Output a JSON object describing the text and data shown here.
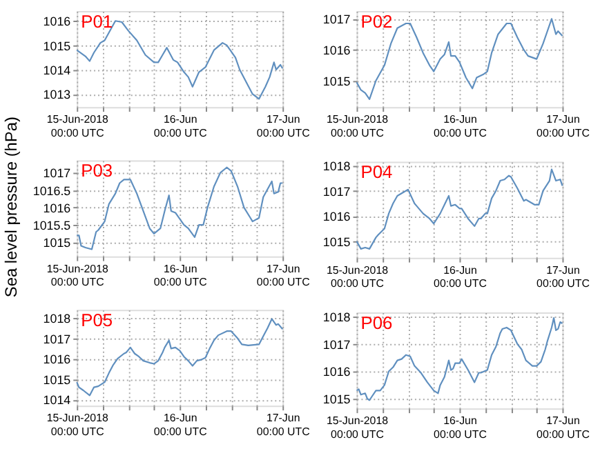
{
  "chart_data": [
    {
      "type": "line",
      "title": "P01",
      "grid": true,
      "xlim": [
        "2018-06-15T00:00",
        "2018-06-17T00:00"
      ],
      "ylim": [
        1012.47,
        1016.4
      ],
      "yticks": [
        1013,
        1014,
        1015,
        1016
      ],
      "xticks": [
        {
          "value": "2018-06-15T00:00",
          "label": "15-Jun-2018\n00:00 UTC"
        },
        {
          "value": "2018-06-15T06:00",
          "label": null
        },
        {
          "value": "2018-06-15T12:00",
          "label": null
        },
        {
          "value": "2018-06-15T18:00",
          "label": null
        },
        {
          "value": "2018-06-16T00:00",
          "label": "16-Jun\n00:00 UTC"
        },
        {
          "value": "2018-06-16T06:00",
          "label": null
        },
        {
          "value": "2018-06-16T12:00",
          "label": null
        },
        {
          "value": "2018-06-16T18:00",
          "label": null
        },
        {
          "value": "2018-06-17T00:00",
          "label": "17-Jun\n00:00 UTC"
        }
      ],
      "x": [
        "2018-06-15T00:00",
        "2018-06-15T02:00",
        "2018-06-15T03:00",
        "2018-06-15T04:00",
        "2018-06-15T05:30",
        "2018-06-15T06:30",
        "2018-06-15T09:00",
        "2018-06-15T10:30",
        "2018-06-15T12:00",
        "2018-06-15T14:00",
        "2018-06-15T16:00",
        "2018-06-15T18:00",
        "2018-06-15T19:00",
        "2018-06-15T20:00",
        "2018-06-15T21:00",
        "2018-06-15T22:30",
        "2018-06-15T23:30",
        "2018-06-16T01:00",
        "2018-06-16T02:00",
        "2018-06-16T03:00",
        "2018-06-16T04:30",
        "2018-06-16T06:00",
        "2018-06-16T08:00",
        "2018-06-16T10:00",
        "2018-06-16T11:00",
        "2018-06-16T13:00",
        "2018-06-16T14:00",
        "2018-06-16T15:30",
        "2018-06-16T17:00",
        "2018-06-16T18:30",
        "2018-06-16T20:00",
        "2018-06-16T21:00",
        "2018-06-16T22:00",
        "2018-06-16T22:30",
        "2018-06-16T23:30",
        "2018-06-17T00:00"
      ],
      "series": [
        {
          "color": "#5f8fbf",
          "values": [
            1014.8,
            1014.55,
            1014.35,
            1014.7,
            1015.1,
            1015.2,
            1016.0,
            1015.95,
            1015.6,
            1015.2,
            1014.6,
            1014.3,
            1014.3,
            1014.6,
            1014.9,
            1014.4,
            1014.3,
            1013.9,
            1013.7,
            1013.3,
            1013.9,
            1014.1,
            1014.8,
            1015.1,
            1015.0,
            1014.5,
            1014.0,
            1013.5,
            1013.0,
            1012.8,
            1013.3,
            1013.7,
            1014.3,
            1014.0,
            1014.2,
            1014.05
          ]
        }
      ]
    },
    {
      "type": "line",
      "title": "P02",
      "grid": true,
      "xlim": [
        "2018-06-15T00:00",
        "2018-06-17T00:00"
      ],
      "ylim": [
        1014.15,
        1017.25
      ],
      "yticks": [
        1015,
        1016,
        1017
      ],
      "xticks": [
        {
          "value": "2018-06-15T00:00",
          "label": "15-Jun-2018\n00:00 UTC"
        },
        {
          "value": "2018-06-15T06:00",
          "label": null
        },
        {
          "value": "2018-06-15T12:00",
          "label": null
        },
        {
          "value": "2018-06-15T18:00",
          "label": null
        },
        {
          "value": "2018-06-16T00:00",
          "label": "16-Jun\n00:00 UTC"
        },
        {
          "value": "2018-06-16T06:00",
          "label": null
        },
        {
          "value": "2018-06-16T12:00",
          "label": null
        },
        {
          "value": "2018-06-16T18:00",
          "label": null
        },
        {
          "value": "2018-06-17T00:00",
          "label": "17-Jun\n00:00 UTC"
        }
      ],
      "x": [
        "2018-06-15T00:00",
        "2018-06-15T01:00",
        "2018-06-15T02:00",
        "2018-06-15T03:00",
        "2018-06-15T04:30",
        "2018-06-15T06:30",
        "2018-06-15T08:00",
        "2018-06-15T09:30",
        "2018-06-15T11:30",
        "2018-06-15T12:30",
        "2018-06-15T14:00",
        "2018-06-15T15:30",
        "2018-06-15T17:00",
        "2018-06-15T18:00",
        "2018-06-15T19:30",
        "2018-06-15T20:30",
        "2018-06-15T21:30",
        "2018-06-15T22:00",
        "2018-06-15T23:00",
        "2018-06-16T00:00",
        "2018-06-16T01:30",
        "2018-06-16T03:00",
        "2018-06-16T04:00",
        "2018-06-16T05:30",
        "2018-06-16T06:30",
        "2018-06-16T07:30",
        "2018-06-16T09:00",
        "2018-06-16T11:00",
        "2018-06-16T12:00",
        "2018-06-16T13:30",
        "2018-06-16T15:00",
        "2018-06-16T16:00",
        "2018-06-16T18:00",
        "2018-06-16T19:30",
        "2018-06-16T20:30",
        "2018-06-16T21:30",
        "2018-06-16T22:30",
        "2018-06-16T23:00",
        "2018-06-17T00:00"
      ],
      "series": [
        {
          "color": "#5f8fbf",
          "values": [
            1014.95,
            1014.7,
            1014.6,
            1014.4,
            1015.0,
            1015.5,
            1016.2,
            1016.7,
            1016.85,
            1016.85,
            1016.4,
            1015.9,
            1015.5,
            1015.3,
            1015.7,
            1015.85,
            1016.25,
            1015.8,
            1015.8,
            1015.6,
            1015.1,
            1014.75,
            1015.1,
            1015.2,
            1015.3,
            1015.9,
            1016.5,
            1016.85,
            1016.85,
            1016.4,
            1016.0,
            1015.8,
            1015.7,
            1016.2,
            1016.6,
            1017.0,
            1016.5,
            1016.6,
            1016.45
          ]
        }
      ]
    },
    {
      "type": "line",
      "title": "P03",
      "ylabel": "Sea level pressure (hPa)",
      "grid": true,
      "xlim": [
        "2018-06-15T00:00",
        "2018-06-17T00:00"
      ],
      "ylim": [
        1014.6,
        1017.35
      ],
      "yticks": [
        1015,
        1015.5,
        1016,
        1016.5,
        1017
      ],
      "xticks": [
        {
          "value": "2018-06-15T00:00",
          "label": "15-Jun-2018\n00:00 UTC"
        },
        {
          "value": "2018-06-15T06:00",
          "label": null
        },
        {
          "value": "2018-06-15T12:00",
          "label": null
        },
        {
          "value": "2018-06-15T18:00",
          "label": null
        },
        {
          "value": "2018-06-16T00:00",
          "label": "16-Jun\n00:00 UTC"
        },
        {
          "value": "2018-06-16T06:00",
          "label": null
        },
        {
          "value": "2018-06-16T12:00",
          "label": null
        },
        {
          "value": "2018-06-16T18:00",
          "label": null
        },
        {
          "value": "2018-06-17T00:00",
          "label": "17-Jun\n00:00 UTC"
        }
      ],
      "x": [
        "2018-06-15T00:00",
        "2018-06-15T00:30",
        "2018-06-15T01:00",
        "2018-06-15T02:00",
        "2018-06-15T03:30",
        "2018-06-15T04:30",
        "2018-06-15T05:00",
        "2018-06-15T06:30",
        "2018-06-15T07:30",
        "2018-06-15T09:00",
        "2018-06-15T10:00",
        "2018-06-15T11:00",
        "2018-06-15T12:30",
        "2018-06-15T14:00",
        "2018-06-15T15:30",
        "2018-06-15T17:00",
        "2018-06-15T18:00",
        "2018-06-15T19:30",
        "2018-06-15T20:30",
        "2018-06-15T21:30",
        "2018-06-15T22:00",
        "2018-06-15T23:00",
        "2018-06-16T01:00",
        "2018-06-16T02:00",
        "2018-06-16T03:30",
        "2018-06-16T04:30",
        "2018-06-16T05:30",
        "2018-06-16T06:30",
        "2018-06-16T08:00",
        "2018-06-16T09:30",
        "2018-06-16T11:00",
        "2018-06-16T12:00",
        "2018-06-16T13:30",
        "2018-06-16T15:00",
        "2018-06-16T16:30",
        "2018-06-16T17:00",
        "2018-06-16T18:30",
        "2018-06-16T19:30",
        "2018-06-16T21:30",
        "2018-06-16T22:00",
        "2018-06-16T23:00",
        "2018-06-16T23:30",
        "2018-06-17T00:00"
      ],
      "series": [
        {
          "color": "#5f8fbf",
          "values": [
            1015.2,
            1015.2,
            1014.9,
            1014.85,
            1014.8,
            1015.3,
            1015.35,
            1015.6,
            1016.1,
            1016.4,
            1016.7,
            1016.8,
            1016.8,
            1016.4,
            1015.9,
            1015.4,
            1015.25,
            1015.4,
            1015.9,
            1016.35,
            1015.9,
            1015.85,
            1015.5,
            1015.4,
            1015.15,
            1015.5,
            1015.5,
            1016.0,
            1016.6,
            1017.0,
            1017.15,
            1017.05,
            1016.6,
            1016.0,
            1015.7,
            1015.6,
            1015.7,
            1016.3,
            1016.75,
            1016.4,
            1016.45,
            1016.7,
            1016.7
          ]
        }
      ]
    },
    {
      "type": "line",
      "title": "P04",
      "grid": true,
      "xlim": [
        "2018-06-15T00:00",
        "2018-06-17T00:00"
      ],
      "ylim": [
        1014.35,
        1018.15
      ],
      "yticks": [
        1015,
        1016,
        1017,
        1018
      ],
      "xticks": [
        {
          "value": "2018-06-15T00:00",
          "label": "15-Jun-2018\n00:00 UTC"
        },
        {
          "value": "2018-06-15T06:00",
          "label": null
        },
        {
          "value": "2018-06-15T12:00",
          "label": null
        },
        {
          "value": "2018-06-15T18:00",
          "label": null
        },
        {
          "value": "2018-06-16T00:00",
          "label": "16-Jun\n00:00 UTC"
        },
        {
          "value": "2018-06-16T06:00",
          "label": null
        },
        {
          "value": "2018-06-16T12:00",
          "label": null
        },
        {
          "value": "2018-06-16T18:00",
          "label": null
        },
        {
          "value": "2018-06-17T00:00",
          "label": "17-Jun\n00:00 UTC"
        }
      ],
      "x": [
        "2018-06-15T00:00",
        "2018-06-15T01:00",
        "2018-06-15T02:00",
        "2018-06-15T03:00",
        "2018-06-15T04:30",
        "2018-06-15T05:00",
        "2018-06-15T06:30",
        "2018-06-15T07:30",
        "2018-06-15T08:30",
        "2018-06-15T09:30",
        "2018-06-15T11:00",
        "2018-06-15T12:00",
        "2018-06-15T13:30",
        "2018-06-15T14:00",
        "2018-06-15T15:30",
        "2018-06-15T17:00",
        "2018-06-15T18:00",
        "2018-06-15T19:30",
        "2018-06-15T20:30",
        "2018-06-15T21:30",
        "2018-06-15T22:00",
        "2018-06-15T23:00",
        "2018-06-16T00:00",
        "2018-06-16T00:30",
        "2018-06-16T02:00",
        "2018-06-16T03:30",
        "2018-06-16T04:30",
        "2018-06-16T05:00",
        "2018-06-16T06:00",
        "2018-06-16T06:30",
        "2018-06-16T07:30",
        "2018-06-16T08:30",
        "2018-06-16T09:30",
        "2018-06-16T10:30",
        "2018-06-16T11:30",
        "2018-06-16T12:00",
        "2018-06-16T13:30",
        "2018-06-16T15:00",
        "2018-06-16T15:30",
        "2018-06-16T17:30",
        "2018-06-16T18:30",
        "2018-06-16T19:30",
        "2018-06-16T21:00",
        "2018-06-16T21:30",
        "2018-06-16T22:30",
        "2018-06-16T23:30",
        "2018-06-17T00:00"
      ],
      "series": [
        {
          "color": "#5f8fbf",
          "values": [
            1015.0,
            1014.7,
            1014.75,
            1014.7,
            1015.15,
            1015.25,
            1015.5,
            1016.1,
            1016.5,
            1016.8,
            1016.95,
            1017.05,
            1016.5,
            1016.4,
            1016.1,
            1015.9,
            1015.7,
            1016.1,
            1016.45,
            1016.8,
            1016.4,
            1016.45,
            1016.3,
            1016.3,
            1015.9,
            1015.6,
            1015.9,
            1015.9,
            1016.1,
            1016.1,
            1016.7,
            1017.0,
            1017.4,
            1017.45,
            1017.6,
            1017.55,
            1017.1,
            1016.6,
            1016.65,
            1016.45,
            1016.45,
            1017.0,
            1017.4,
            1017.85,
            1017.4,
            1017.45,
            1017.2
          ]
        }
      ]
    },
    {
      "type": "line",
      "title": "P05",
      "grid": true,
      "xlim": [
        "2018-06-15T00:00",
        "2018-06-17T00:00"
      ],
      "ylim": [
        1013.7,
        1018.4
      ],
      "yticks": [
        1014,
        1015,
        1016,
        1017,
        1018
      ],
      "xticks": [
        {
          "value": "2018-06-15T00:00",
          "label": "15-Jun-2018\n00:00 UTC"
        },
        {
          "value": "2018-06-15T06:00",
          "label": null
        },
        {
          "value": "2018-06-15T12:00",
          "label": null
        },
        {
          "value": "2018-06-15T18:00",
          "label": null
        },
        {
          "value": "2018-06-16T00:00",
          "label": "16-Jun\n00:00 UTC"
        },
        {
          "value": "2018-06-16T06:00",
          "label": null
        },
        {
          "value": "2018-06-16T12:00",
          "label": null
        },
        {
          "value": "2018-06-16T18:00",
          "label": null
        },
        {
          "value": "2018-06-17T00:00",
          "label": "17-Jun\n00:00 UTC"
        }
      ],
      "x": [
        "2018-06-15T00:00",
        "2018-06-15T00:30",
        "2018-06-15T01:30",
        "2018-06-15T03:00",
        "2018-06-15T04:00",
        "2018-06-15T05:00",
        "2018-06-15T06:30",
        "2018-06-15T07:30",
        "2018-06-15T08:30",
        "2018-06-15T09:30",
        "2018-06-15T11:00",
        "2018-06-15T11:30",
        "2018-06-15T12:30",
        "2018-06-15T13:30",
        "2018-06-15T14:30",
        "2018-06-15T15:30",
        "2018-06-15T17:00",
        "2018-06-15T18:00",
        "2018-06-15T19:00",
        "2018-06-15T20:00",
        "2018-06-15T20:30",
        "2018-06-15T21:30",
        "2018-06-15T22:00",
        "2018-06-15T23:00",
        "2018-06-16T00:00",
        "2018-06-16T01:00",
        "2018-06-16T02:00",
        "2018-06-16T03:00",
        "2018-06-16T04:00",
        "2018-06-16T05:00",
        "2018-06-16T06:00",
        "2018-06-16T07:00",
        "2018-06-16T08:00",
        "2018-06-16T09:00",
        "2018-06-16T11:00",
        "2018-06-16T12:00",
        "2018-06-16T13:30",
        "2018-06-16T14:30",
        "2018-06-16T16:00",
        "2018-06-16T18:30",
        "2018-06-16T19:30",
        "2018-06-16T20:30",
        "2018-06-16T21:30",
        "2018-06-16T22:30",
        "2018-06-16T23:00",
        "2018-06-17T00:00"
      ],
      "series": [
        {
          "color": "#5f8fbf",
          "values": [
            1014.85,
            1014.6,
            1014.45,
            1014.2,
            1014.6,
            1014.65,
            1014.85,
            1015.3,
            1015.7,
            1016.0,
            1016.25,
            1016.3,
            1016.55,
            1016.25,
            1016.1,
            1015.9,
            1015.8,
            1015.75,
            1015.9,
            1016.3,
            1016.55,
            1016.9,
            1016.5,
            1016.55,
            1016.4,
            1016.1,
            1015.9,
            1015.65,
            1015.9,
            1015.95,
            1016.05,
            1016.5,
            1016.9,
            1017.15,
            1017.35,
            1017.35,
            1017.0,
            1016.7,
            1016.65,
            1016.7,
            1017.1,
            1017.5,
            1017.95,
            1017.65,
            1017.7,
            1017.45
          ]
        }
      ]
    },
    {
      "type": "line",
      "title": "P06",
      "grid": true,
      "xlim": [
        "2018-06-15T00:00",
        "2018-06-17T00:00"
      ],
      "ylim": [
        1014.65,
        1018.15
      ],
      "yticks": [
        1015,
        1016,
        1017,
        1018
      ],
      "xticks": [
        {
          "value": "2018-06-15T00:00",
          "label": "15-Jun-2018\n00:00 UTC"
        },
        {
          "value": "2018-06-15T06:00",
          "label": null
        },
        {
          "value": "2018-06-15T12:00",
          "label": null
        },
        {
          "value": "2018-06-15T18:00",
          "label": null
        },
        {
          "value": "2018-06-16T00:00",
          "label": "16-Jun\n00:00 UTC"
        },
        {
          "value": "2018-06-16T06:00",
          "label": null
        },
        {
          "value": "2018-06-16T12:00",
          "label": null
        },
        {
          "value": "2018-06-16T18:00",
          "label": null
        },
        {
          "value": "2018-06-17T00:00",
          "label": "17-Jun\n00:00 UTC"
        }
      ],
      "x": [
        "2018-06-15T00:00",
        "2018-06-15T00:30",
        "2018-06-15T01:00",
        "2018-06-15T02:00",
        "2018-06-15T02:30",
        "2018-06-15T03:00",
        "2018-06-15T04:30",
        "2018-06-15T05:30",
        "2018-06-15T06:30",
        "2018-06-15T07:30",
        "2018-06-15T08:30",
        "2018-06-15T09:30",
        "2018-06-15T10:30",
        "2018-06-15T11:30",
        "2018-06-15T12:30",
        "2018-06-15T13:30",
        "2018-06-15T15:00",
        "2018-06-15T16:30",
        "2018-06-15T18:00",
        "2018-06-15T19:00",
        "2018-06-15T19:30",
        "2018-06-15T20:30",
        "2018-06-15T21:30",
        "2018-06-15T22:00",
        "2018-06-15T22:30",
        "2018-06-15T23:00",
        "2018-06-16T00:00",
        "2018-06-16T00:30",
        "2018-06-16T02:00",
        "2018-06-16T03:30",
        "2018-06-16T04:30",
        "2018-06-16T05:00",
        "2018-06-16T06:30",
        "2018-06-16T07:30",
        "2018-06-16T08:30",
        "2018-06-16T09:30",
        "2018-06-16T10:00",
        "2018-06-16T11:00",
        "2018-06-16T12:00",
        "2018-06-16T13:30",
        "2018-06-16T14:30",
        "2018-06-16T15:30",
        "2018-06-16T17:00",
        "2018-06-16T18:00",
        "2018-06-16T19:00",
        "2018-06-16T20:00",
        "2018-06-16T20:30",
        "2018-06-16T21:30",
        "2018-06-16T22:00",
        "2018-06-16T22:30",
        "2018-06-16T23:00",
        "2018-06-16T23:30",
        "2018-06-17T00:00"
      ],
      "series": [
        {
          "color": "#5f8fbf",
          "values": [
            1015.3,
            1015.35,
            1015.15,
            1015.2,
            1015.0,
            1014.95,
            1015.3,
            1015.3,
            1015.5,
            1016.0,
            1016.15,
            1016.4,
            1016.45,
            1016.6,
            1016.55,
            1016.2,
            1015.95,
            1015.6,
            1015.3,
            1015.2,
            1015.5,
            1015.8,
            1016.4,
            1016.05,
            1016.1,
            1016.3,
            1016.3,
            1016.45,
            1016.05,
            1015.6,
            1015.95,
            1015.95,
            1016.05,
            1016.6,
            1016.9,
            1017.4,
            1017.55,
            1017.6,
            1017.5,
            1017.0,
            1016.8,
            1016.4,
            1016.2,
            1016.2,
            1016.35,
            1016.8,
            1017.1,
            1017.6,
            1017.95,
            1017.5,
            1017.55,
            1017.8,
            1017.75
          ]
        }
      ]
    }
  ]
}
